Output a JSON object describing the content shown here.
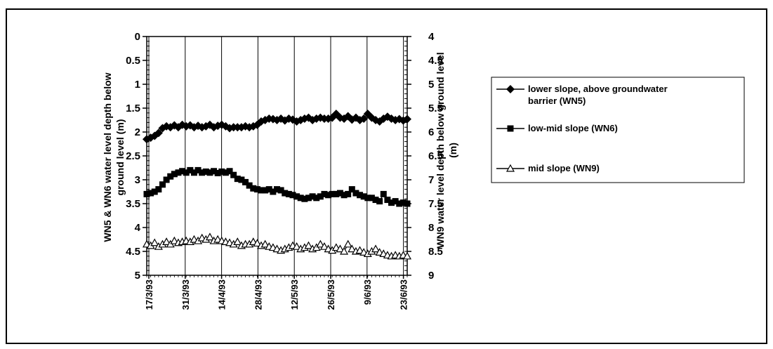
{
  "chart_data": {
    "type": "line",
    "title": "",
    "x_tick_labels": [
      "17/3/93",
      "31/3/93",
      "14/4/93",
      "28/4/93",
      "12/5/93",
      "26/5/93",
      "9/6/93",
      "23/6/93"
    ],
    "x_range": [
      "17/3/93",
      "26/6/93"
    ],
    "y_left": {
      "label": "WN5 & WN6 water level depth below ground level (m)",
      "range": [
        0,
        5
      ],
      "inverted": true,
      "ticks": [
        "0",
        "0.5",
        "1",
        "1.5",
        "2",
        "2.5",
        "3",
        "3.5",
        "4",
        "4.5",
        "5"
      ]
    },
    "y_right": {
      "label": "WN9 water level depth below ground level (m)",
      "range": [
        4,
        9
      ],
      "inverted": true,
      "ticks": [
        "4",
        "4.5",
        "5",
        "5.5",
        "6",
        "6.5",
        "7",
        "7.5",
        "8",
        "8.5",
        "9"
      ]
    },
    "grid": {
      "vertical": true,
      "horizontal": false
    },
    "legend_position": "right",
    "series": [
      {
        "name": "lower slope, above groundwater barrier (WN5)",
        "axis": "left",
        "marker": "diamond",
        "color": "#000000",
        "values": [
          2.15,
          2.12,
          2.08,
          2.02,
          1.92,
          1.88,
          1.9,
          1.86,
          1.9,
          1.85,
          1.88,
          1.86,
          1.9,
          1.87,
          1.9,
          1.88,
          1.85,
          1.9,
          1.87,
          1.85,
          1.88,
          1.92,
          1.9,
          1.9,
          1.9,
          1.88,
          1.9,
          1.88,
          1.85,
          1.78,
          1.75,
          1.72,
          1.73,
          1.75,
          1.72,
          1.76,
          1.72,
          1.74,
          1.78,
          1.75,
          1.72,
          1.7,
          1.75,
          1.72,
          1.7,
          1.72,
          1.72,
          1.7,
          1.62,
          1.7,
          1.72,
          1.67,
          1.74,
          1.7,
          1.75,
          1.72,
          1.62,
          1.7,
          1.75,
          1.78,
          1.72,
          1.68,
          1.72,
          1.75,
          1.73,
          1.76,
          1.73
        ]
      },
      {
        "name": "low-mid slope (WN6)",
        "axis": "left",
        "marker": "square",
        "color": "#000000",
        "values": [
          3.3,
          3.28,
          3.25,
          3.2,
          3.1,
          3.0,
          2.93,
          2.88,
          2.85,
          2.82,
          2.85,
          2.8,
          2.85,
          2.8,
          2.85,
          2.83,
          2.85,
          2.82,
          2.86,
          2.83,
          2.85,
          2.82,
          2.9,
          2.98,
          3.0,
          3.05,
          3.12,
          3.18,
          3.2,
          3.22,
          3.22,
          3.2,
          3.25,
          3.2,
          3.22,
          3.28,
          3.3,
          3.32,
          3.35,
          3.38,
          3.4,
          3.38,
          3.35,
          3.38,
          3.35,
          3.3,
          3.32,
          3.3,
          3.3,
          3.28,
          3.32,
          3.3,
          3.2,
          3.28,
          3.32,
          3.35,
          3.38,
          3.38,
          3.42,
          3.45,
          3.3,
          3.42,
          3.48,
          3.45,
          3.5,
          3.48,
          3.5
        ]
      },
      {
        "name": "mid slope (WN9)",
        "axis": "right",
        "marker": "triangle-open",
        "color": "#000000",
        "values": [
          8.35,
          8.38,
          8.32,
          8.4,
          8.35,
          8.3,
          8.35,
          8.28,
          8.32,
          8.3,
          8.28,
          8.3,
          8.25,
          8.28,
          8.22,
          8.25,
          8.2,
          8.28,
          8.25,
          8.28,
          8.3,
          8.32,
          8.35,
          8.3,
          8.38,
          8.35,
          8.35,
          8.3,
          8.33,
          8.38,
          8.35,
          8.4,
          8.42,
          8.45,
          8.48,
          8.45,
          8.42,
          8.38,
          8.4,
          8.45,
          8.42,
          8.38,
          8.45,
          8.42,
          8.35,
          8.4,
          8.45,
          8.48,
          8.42,
          8.45,
          8.5,
          8.35,
          8.45,
          8.5,
          8.48,
          8.52,
          8.55,
          8.5,
          8.45,
          8.52,
          8.55,
          8.58,
          8.6,
          8.58,
          8.6,
          8.58,
          8.6
        ]
      }
    ]
  }
}
